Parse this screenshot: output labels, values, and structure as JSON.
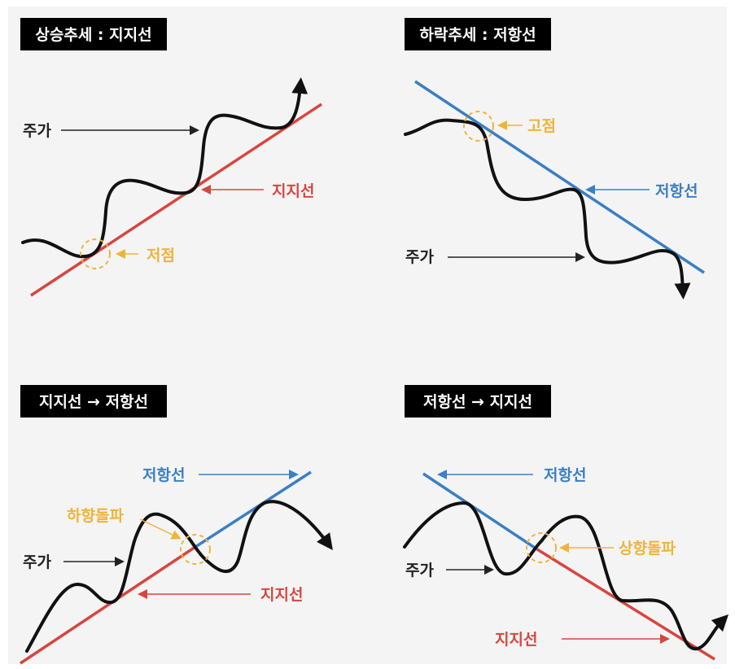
{
  "colors": {
    "support": "#d9453f",
    "resistance": "#3b7fc4",
    "highlight": "#eeb43a",
    "price": "#111111",
    "panel_bg": "#f4f4f4"
  },
  "panels": [
    {
      "title": "상승추세 : 지지선",
      "price_label": "주가",
      "support_label": "지지선",
      "point_label": "저점"
    },
    {
      "title": "하락추세 : 저항선",
      "price_label": "주가",
      "resistance_label": "저항선",
      "point_label": "고점"
    },
    {
      "title": "지지선 → 저항선",
      "price_label": "주가",
      "support_label": "지지선",
      "resistance_label": "저항선",
      "point_label": "하향돌파"
    },
    {
      "title": "저항선 → 지지선",
      "price_label": "주가",
      "support_label": "지지선",
      "resistance_label": "저항선",
      "point_label": "상향돌파"
    }
  ]
}
